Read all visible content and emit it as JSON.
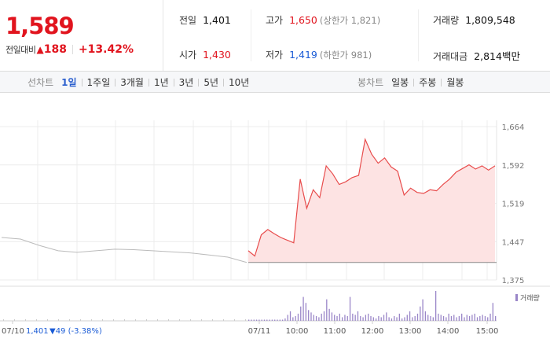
{
  "quote": {
    "price": "1,589",
    "change_label": "전일대비",
    "change_icon": "up-triangle-icon",
    "change_value": "188",
    "change_percent": "+13.42%",
    "up_color": "#e1141e"
  },
  "stats": {
    "prev_close_label": "전일",
    "prev_close": "1,401",
    "open_label": "시가",
    "open": "1,430",
    "high_label": "고가",
    "high": "1,650",
    "upper_limit_note": "(상한가 1,821)",
    "low_label": "저가",
    "low": "1,419",
    "lower_limit_note": "(하한가 981)",
    "volume_label": "거래량",
    "volume": "1,809,548",
    "amount_label": "거래대금",
    "amount": "2,814백만"
  },
  "period_tabs": {
    "label": "선차트",
    "items": [
      "1일",
      "1주일",
      "3개월",
      "1년",
      "3년",
      "5년",
      "10년"
    ],
    "active": "1일"
  },
  "candle_tabs": {
    "label": "봉차트",
    "items": [
      "일봉",
      "주봉",
      "월봉"
    ]
  },
  "chart_data": {
    "type": "line",
    "y_tick_labels": [
      "1,664",
      "1,592",
      "1,519",
      "1,447",
      "1,375"
    ],
    "ylim": [
      1375,
      1664
    ],
    "x_tick_labels": [
      "07/10",
      "07/11",
      "10:00",
      "11:00",
      "12:00",
      "13:00",
      "14:00",
      "15:00"
    ],
    "prev_day_summary": {
      "date": "07/10",
      "close": "1,401",
      "change": "▼49",
      "change_pct": "(-3.38%)"
    },
    "volume_legend": "거래량",
    "series": [
      {
        "x": [
          "07/10 09:00",
          "07/10 09:30",
          "07/10 10:00",
          "07/10 10:30",
          "07/10 11:00",
          "07/10 11:30",
          "07/10 12:00",
          "07/10 12:30",
          "07/10 13:00",
          "07/10 13:30",
          "07/10 14:00",
          "07/10 14:30",
          "07/10 15:00",
          "07/10 15:30"
        ],
        "values": [
          1455,
          1452,
          1440,
          1430,
          1427,
          1430,
          1433,
          1432,
          1430,
          1428,
          1426,
          1422,
          1418,
          1408
        ],
        "color": "#bbbbbb"
      },
      {
        "x": [
          "09:00",
          "09:10",
          "09:20",
          "09:30",
          "09:40",
          "09:50",
          "10:00",
          "10:10",
          "10:20",
          "10:30",
          "10:40",
          "10:50",
          "11:00",
          "11:10",
          "11:20",
          "11:30",
          "11:40",
          "11:50",
          "12:00",
          "12:10",
          "12:20",
          "12:30",
          "12:40",
          "12:50",
          "13:00",
          "13:10",
          "13:20",
          "13:30",
          "13:40",
          "13:50",
          "14:00",
          "14:10",
          "14:20",
          "14:30",
          "14:40",
          "14:50",
          "15:00",
          "15:10",
          "15:20"
        ],
        "values": [
          1430,
          1420,
          1460,
          1470,
          1462,
          1455,
          1450,
          1445,
          1565,
          1510,
          1545,
          1530,
          1590,
          1575,
          1555,
          1560,
          1568,
          1572,
          1640,
          1612,
          1595,
          1605,
          1588,
          1580,
          1535,
          1548,
          1540,
          1538,
          1545,
          1543,
          1555,
          1565,
          1578,
          1585,
          1592,
          1584,
          1590,
          1582,
          1590
        ],
        "color": "#e84c4c"
      }
    ],
    "volume": [
      1,
      1,
      1,
      1,
      1,
      1,
      1,
      1,
      1,
      1,
      1,
      1,
      1,
      1,
      2,
      5,
      8,
      3,
      4,
      6,
      12,
      20,
      15,
      9,
      7,
      5,
      4,
      3,
      6,
      8,
      18,
      10,
      7,
      5,
      4,
      6,
      3,
      5,
      4,
      20,
      6,
      5,
      8,
      4,
      3,
      5,
      6,
      4,
      3,
      2,
      4,
      3,
      5,
      7,
      3,
      2,
      4,
      3,
      6,
      2,
      3,
      5,
      8,
      3,
      4,
      6,
      12,
      18,
      8,
      5,
      4,
      3,
      25,
      6,
      5,
      4,
      3,
      6,
      4,
      5,
      3,
      4,
      6,
      3,
      5,
      4,
      5,
      6,
      3,
      4,
      5,
      4,
      3,
      6,
      15,
      4
    ],
    "volume_color": "#9a86c8",
    "grid": true
  }
}
